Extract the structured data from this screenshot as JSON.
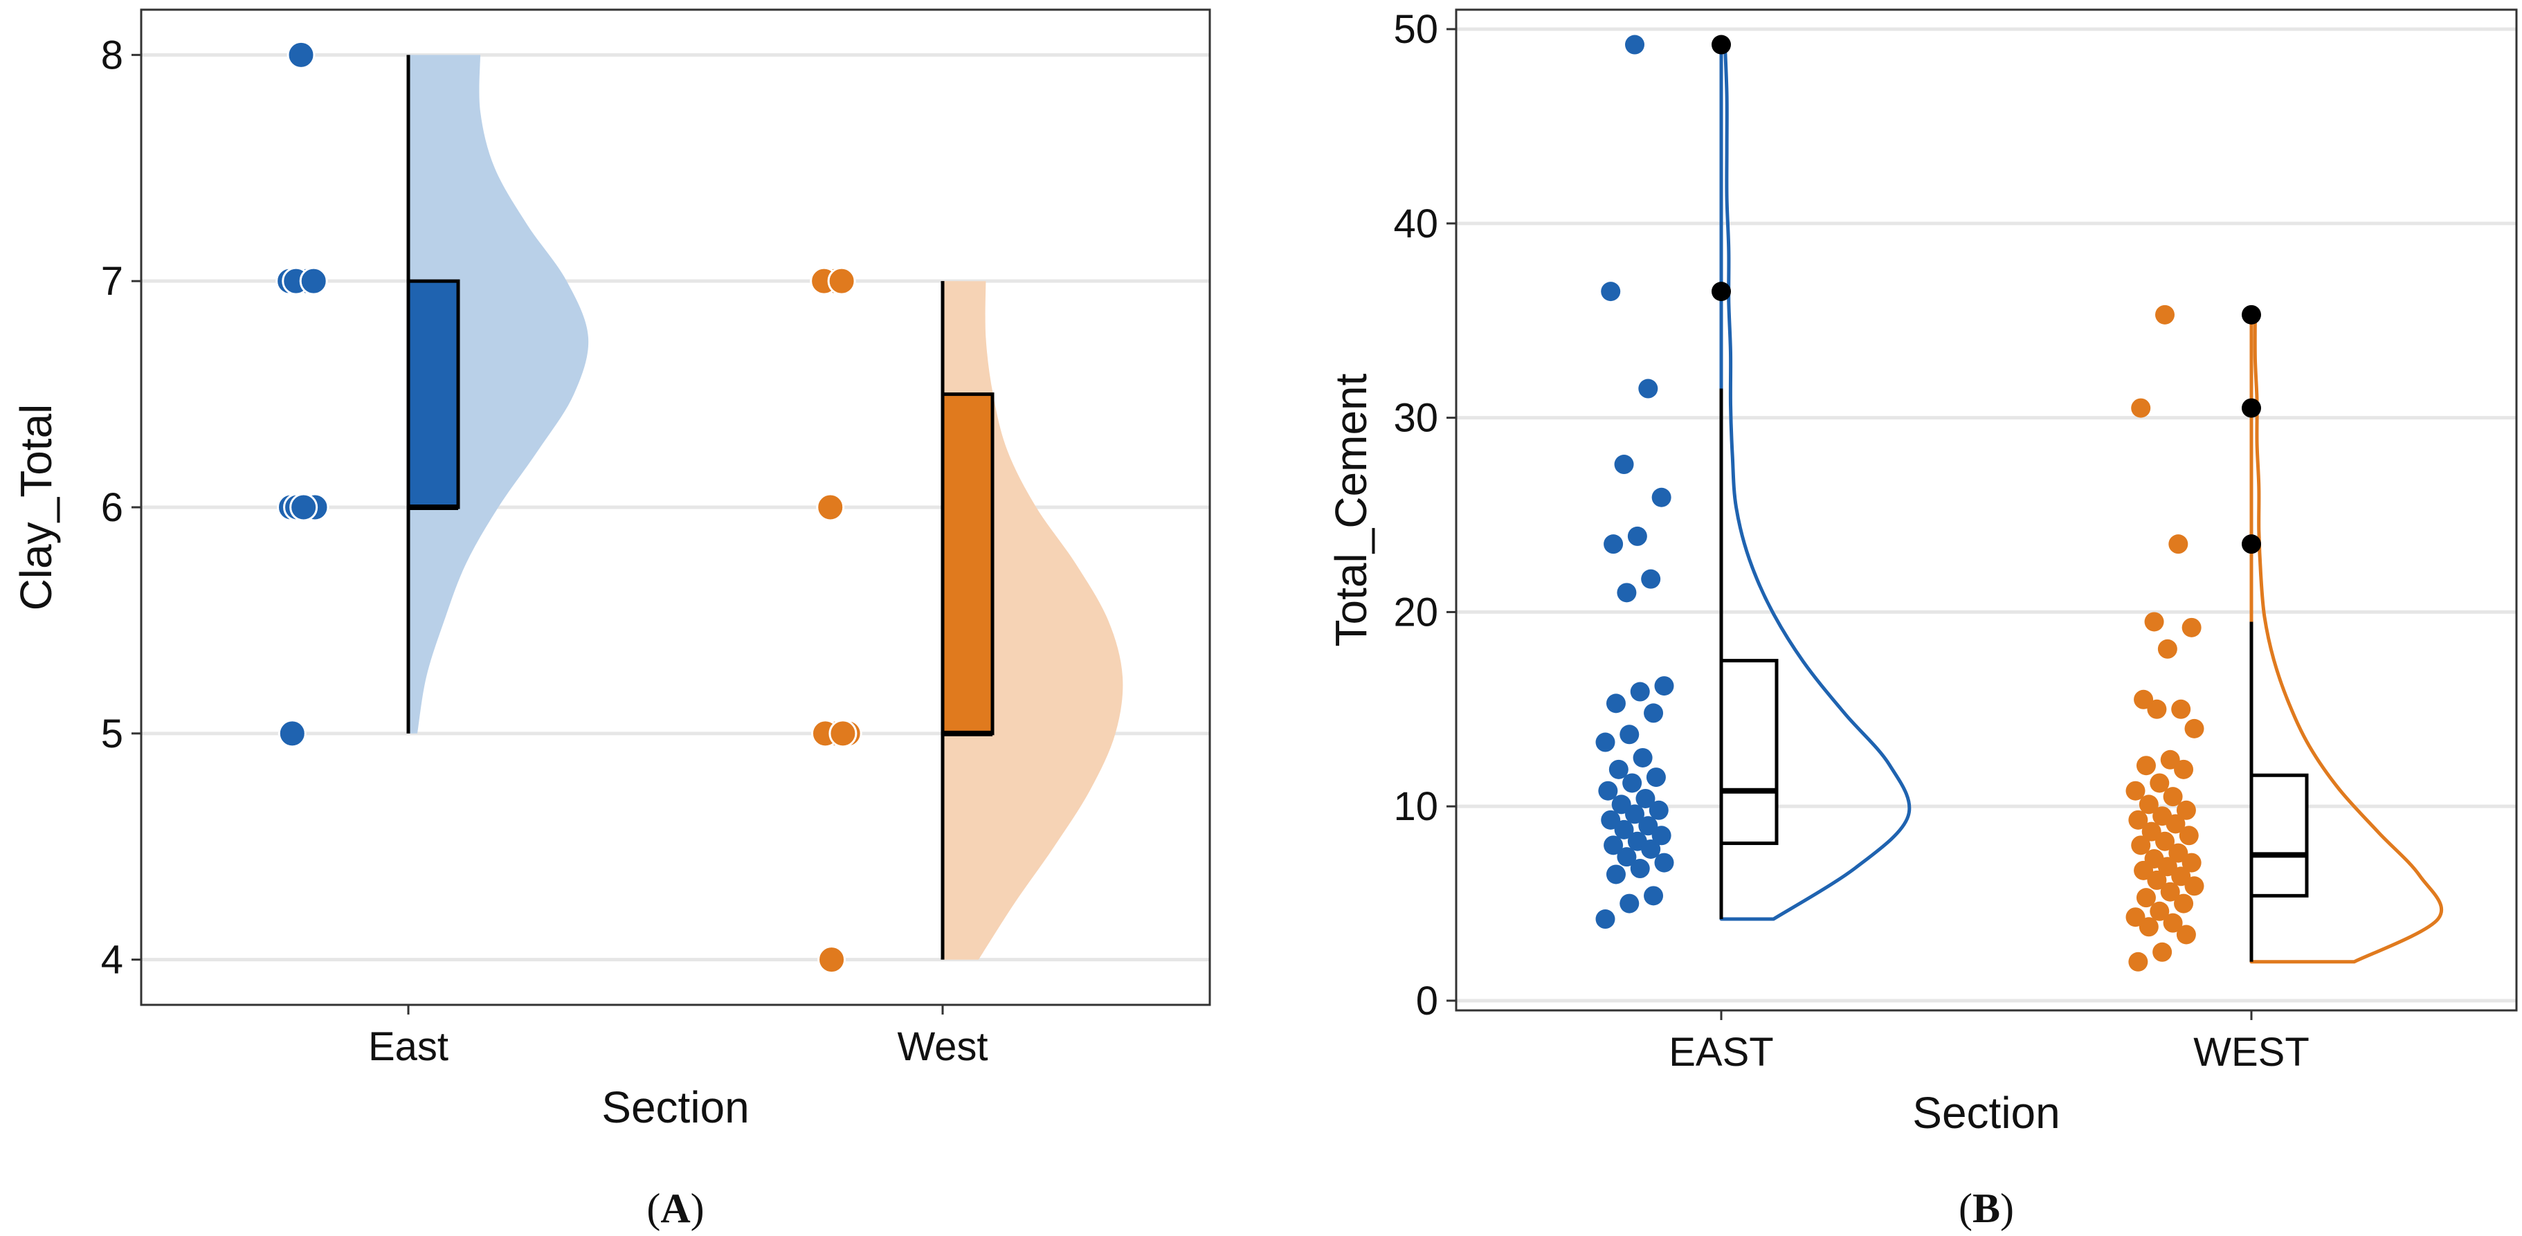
{
  "colors": {
    "east": "#1f63b0",
    "west": "#e07a1e",
    "east_light": "#b9d0e8",
    "west_light": "#f6d3b5",
    "outlier": "#000000"
  },
  "chart_data": [
    {
      "type": "raincloud",
      "panel_label": "A",
      "xlabel": "Section",
      "ylabel": "Clay_Total",
      "ylim": [
        3.8,
        8.2
      ],
      "yticks": [
        4,
        5,
        6,
        7,
        8
      ],
      "categories": [
        "East",
        "West"
      ],
      "grid": true,
      "series": [
        {
          "category": "East",
          "color": "#1f63b0",
          "points": [
            8,
            7,
            7,
            7,
            7,
            6,
            6,
            6,
            6,
            6,
            6,
            5
          ],
          "box": {
            "min": 5,
            "q1": 6,
            "median": 6,
            "q3": 7,
            "max": 8
          },
          "density_range": [
            5,
            8
          ],
          "density": [
            0.05,
            0.1,
            0.2,
            0.32,
            0.5,
            0.72,
            0.92,
            1.0,
            0.88,
            0.66,
            0.48,
            0.4,
            0.4
          ]
        },
        {
          "category": "West",
          "color": "#e07a1e",
          "points": [
            7,
            7,
            7,
            6,
            5,
            5,
            5,
            5,
            4
          ],
          "box": {
            "min": 4,
            "q1": 5,
            "median": 5,
            "q3": 6.5,
            "max": 7
          },
          "density_range": [
            4,
            7
          ],
          "density": [
            0.2,
            0.4,
            0.62,
            0.82,
            0.96,
            1.0,
            0.92,
            0.74,
            0.52,
            0.36,
            0.28,
            0.24,
            0.24
          ]
        }
      ]
    },
    {
      "type": "raincloud",
      "panel_label": "B",
      "xlabel": "Section",
      "ylabel": "Total_Cement",
      "ylim": [
        -0.5,
        51
      ],
      "yticks": [
        0,
        10,
        20,
        30,
        40,
        50
      ],
      "categories": [
        "EAST",
        "WEST"
      ],
      "grid": true,
      "series": [
        {
          "category": "EAST",
          "color": "#1f63b0",
          "points": [
            49.2,
            36.5,
            31.5,
            27.6,
            25.9,
            23.9,
            23.5,
            21.7,
            21.0,
            16.2,
            15.9,
            15.3,
            14.8,
            13.7,
            13.3,
            12.5,
            11.9,
            11.5,
            11.2,
            10.8,
            10.4,
            10.1,
            9.8,
            9.6,
            9.3,
            9.0,
            8.8,
            8.5,
            8.2,
            8.0,
            7.8,
            7.4,
            7.1,
            6.8,
            6.5,
            5.4,
            5.0,
            4.2
          ],
          "outliers": [
            49.2,
            36.5
          ],
          "box": {
            "min": 4.2,
            "q1": 8.1,
            "median": 10.8,
            "q3": 17.5,
            "max": 31.5
          },
          "density_range": [
            4.2,
            49.2
          ],
          "density": [
            0.28,
            0.72,
            1.0,
            0.9,
            0.66,
            0.44,
            0.27,
            0.15,
            0.08,
            0.06,
            0.05,
            0.05,
            0.04,
            0.04,
            0.03,
            0.03,
            0.03,
            0.02
          ]
        },
        {
          "category": "WEST",
          "color": "#e07a1e",
          "points": [
            35.3,
            30.5,
            23.5,
            19.5,
            19.2,
            18.1,
            15.5,
            15.0,
            15.0,
            14.0,
            12.4,
            12.1,
            11.9,
            11.2,
            10.8,
            10.5,
            10.1,
            9.8,
            9.5,
            9.3,
            9.1,
            8.7,
            8.5,
            8.2,
            8.0,
            7.6,
            7.3,
            7.1,
            6.9,
            6.7,
            6.4,
            6.2,
            5.9,
            5.6,
            5.3,
            5.0,
            4.6,
            4.3,
            4.0,
            3.8,
            3.4,
            2.5,
            2.0
          ],
          "outliers": [
            35.3,
            30.5,
            23.5
          ],
          "box": {
            "min": 2.0,
            "q1": 5.4,
            "median": 7.5,
            "q3": 11.6,
            "max": 19.5
          },
          "density_range": [
            2.0,
            35.3
          ],
          "density": [
            0.55,
            1.0,
            0.9,
            0.68,
            0.47,
            0.31,
            0.2,
            0.12,
            0.07,
            0.05,
            0.04,
            0.04,
            0.03,
            0.03,
            0.02,
            0.02
          ]
        }
      ]
    }
  ]
}
